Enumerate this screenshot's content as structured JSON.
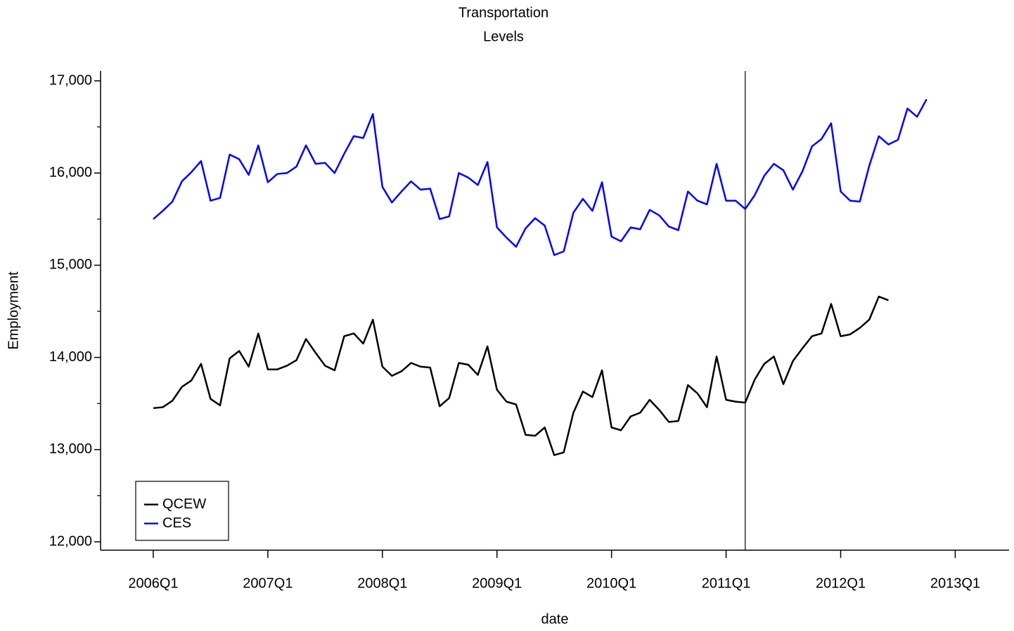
{
  "chart_data": {
    "type": "line",
    "title": "Transportation",
    "subtitle": "Levels",
    "xlabel": "date",
    "ylabel": "Employment",
    "x": [
      2006.0,
      2006.083,
      2006.167,
      2006.25,
      2006.333,
      2006.417,
      2006.5,
      2006.583,
      2006.667,
      2006.75,
      2006.833,
      2006.917,
      2007.0,
      2007.083,
      2007.167,
      2007.25,
      2007.333,
      2007.417,
      2007.5,
      2007.583,
      2007.667,
      2007.75,
      2007.833,
      2007.917,
      2008.0,
      2008.083,
      2008.167,
      2008.25,
      2008.333,
      2008.417,
      2008.5,
      2008.583,
      2008.667,
      2008.75,
      2008.833,
      2008.917,
      2009.0,
      2009.083,
      2009.167,
      2009.25,
      2009.333,
      2009.417,
      2009.5,
      2009.583,
      2009.667,
      2009.75,
      2009.833,
      2009.917,
      2010.0,
      2010.083,
      2010.167,
      2010.25,
      2010.333,
      2010.417,
      2010.5,
      2010.583,
      2010.667,
      2010.75,
      2010.833,
      2010.917,
      2011.0,
      2011.083,
      2011.167,
      2011.25,
      2011.333,
      2011.417,
      2011.5,
      2011.583,
      2011.667,
      2011.75,
      2011.833,
      2011.917,
      2012.0,
      2012.083,
      2012.167,
      2012.25,
      2012.333,
      2012.417,
      2012.5,
      2012.583,
      2012.667,
      2012.75
    ],
    "series": [
      {
        "name": "QCEW",
        "color": "#000000",
        "values": [
          13450,
          13460,
          13530,
          13680,
          13750,
          13930,
          13550,
          13480,
          13990,
          14070,
          13900,
          14260,
          13870,
          13870,
          13910,
          13970,
          14200,
          14050,
          13910,
          13860,
          14230,
          14260,
          14150,
          14410,
          13900,
          13800,
          13850,
          13940,
          13900,
          13890,
          13470,
          13560,
          13940,
          13920,
          13810,
          14120,
          13650,
          13520,
          13490,
          13160,
          13150,
          13240,
          12940,
          12970,
          13400,
          13630,
          13570,
          13860,
          13240,
          13210,
          13360,
          13400,
          13540,
          13430,
          13300,
          13310,
          13700,
          13610,
          13460,
          14010,
          13540,
          13520,
          13510,
          13760,
          13930,
          14010,
          13710,
          13960,
          14100,
          14230,
          14260,
          14580,
          14230,
          14250,
          14320,
          14410,
          14660,
          14620,
          null,
          null,
          null,
          null
        ]
      },
      {
        "name": "CES",
        "color": "#0000ff",
        "values": [
          15500,
          15590,
          15690,
          15910,
          16010,
          16130,
          15700,
          15730,
          16200,
          16150,
          15980,
          16300,
          15900,
          15990,
          16000,
          16070,
          16300,
          16100,
          16110,
          16000,
          16210,
          16400,
          16380,
          16640,
          15850,
          15680,
          15800,
          15910,
          15820,
          15830,
          15500,
          15530,
          16000,
          15950,
          15870,
          16120,
          15410,
          15300,
          15200,
          15400,
          15510,
          15430,
          15110,
          15150,
          15570,
          15720,
          15590,
          15900,
          15310,
          15260,
          15410,
          15390,
          15600,
          15540,
          15420,
          15380,
          15800,
          15700,
          15660,
          16100,
          15700,
          15700,
          15610,
          15760,
          15970,
          16100,
          16030,
          15820,
          16020,
          16290,
          16370,
          16540,
          15800,
          15700,
          15690,
          16080,
          16400,
          16310,
          16360,
          16700,
          16610,
          16800
        ]
      }
    ],
    "xlim": [
      2005.54,
      2013.47
    ],
    "xticks": [
      {
        "value": 2006,
        "label": "2006Q1"
      },
      {
        "value": 2007,
        "label": "2007Q1"
      },
      {
        "value": 2008,
        "label": "2008Q1"
      },
      {
        "value": 2009,
        "label": "2009Q1"
      },
      {
        "value": 2010,
        "label": "2010Q1"
      },
      {
        "value": 2011,
        "label": "2011Q1"
      },
      {
        "value": 2012,
        "label": "2012Q1"
      },
      {
        "value": 2013,
        "label": "2013Q1"
      }
    ],
    "ylim": [
      11909,
      17107
    ],
    "yticks": [
      {
        "value": 12000,
        "label": "12,000"
      },
      {
        "value": 13000,
        "label": "13,000"
      },
      {
        "value": 14000,
        "label": "14,000"
      },
      {
        "value": 15000,
        "label": "15,000"
      },
      {
        "value": 16000,
        "label": "16,000"
      },
      {
        "value": 17000,
        "label": "17,000"
      }
    ],
    "yminor_ticks": [
      12500,
      13500,
      14500,
      15500,
      16500
    ],
    "vline": 2011.167,
    "legend": "lower left"
  }
}
